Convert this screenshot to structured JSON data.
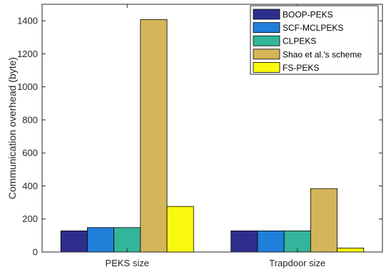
{
  "chart_data": {
    "type": "bar",
    "categories": [
      "PEKS size",
      "Trapdoor size"
    ],
    "series": [
      {
        "name": "BOOP-PEKS",
        "color": "#2e2e8c",
        "values": [
          128,
          128
        ]
      },
      {
        "name": "SCF-MCLPEKS",
        "color": "#1f7fd9",
        "values": [
          148,
          128
        ]
      },
      {
        "name": "CLPEKS",
        "color": "#32b59a",
        "values": [
          148,
          128
        ]
      },
      {
        "name": "Shao et al.'s scheme",
        "color": "#d4b55a",
        "values": [
          1408,
          384
        ]
      },
      {
        "name": "FS-PEKS",
        "color": "#f9f90f",
        "values": [
          276,
          24
        ]
      }
    ],
    "xlabel": "",
    "ylabel": "Communication overhead (byte)",
    "ylim": [
      0,
      1500
    ],
    "yticks": [
      0,
      200,
      400,
      600,
      800,
      1000,
      1200,
      1400
    ],
    "grid": false,
    "legend_position": "top-right"
  }
}
